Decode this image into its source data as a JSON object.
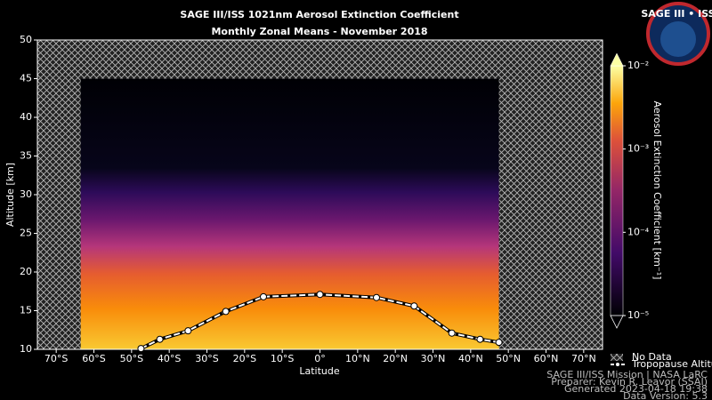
{
  "chart_data": {
    "type": "line",
    "title": "SAGE III/ISS 1021nm Aerosol Extinction Coefficient",
    "subtitle": "Monthly Zonal Means - November 2018",
    "x_label": "Latitude",
    "y_label": "Altitude [km]",
    "xlim": [
      -75,
      75
    ],
    "ylim": [
      10,
      50
    ],
    "xticks": [
      {
        "value": -70,
        "label": "70°S"
      },
      {
        "value": -60,
        "label": "60°S"
      },
      {
        "value": -50,
        "label": "50°S"
      },
      {
        "value": -40,
        "label": "40°S"
      },
      {
        "value": -30,
        "label": "30°S"
      },
      {
        "value": -20,
        "label": "20°S"
      },
      {
        "value": -10,
        "label": "10°S"
      },
      {
        "value": 0,
        "label": "0°"
      },
      {
        "value": 10,
        "label": "10°N"
      },
      {
        "value": 20,
        "label": "20°N"
      },
      {
        "value": 30,
        "label": "30°N"
      },
      {
        "value": 40,
        "label": "40°N"
      },
      {
        "value": 50,
        "label": "50°N"
      },
      {
        "value": 60,
        "label": "60°N"
      },
      {
        "value": 70,
        "label": "70°N"
      }
    ],
    "yticks": [
      10,
      15,
      20,
      25,
      30,
      35,
      40,
      45,
      50
    ],
    "coverage": {
      "lat": [
        -63.5,
        47.5
      ],
      "alt_top": 45
    },
    "series": [
      {
        "name": "Tropopause Altitude",
        "color": "#ffffff",
        "x": [
          -47.5,
          -42.5,
          -35,
          -25,
          -15,
          0,
          15,
          25,
          35,
          42.5,
          47.5
        ],
        "values": [
          10.1,
          11.3,
          12.4,
          14.9,
          16.8,
          17.1,
          16.7,
          15.6,
          12.1,
          11.3,
          10.9
        ]
      }
    ],
    "no_data_label": "No Data",
    "colorbar": {
      "label": "Aerosol Extinction Coefficient [km⁻¹]",
      "log_scale": true,
      "clim": [
        1e-05,
        0.01
      ],
      "cticks": [
        {
          "value": 1e-05,
          "label": "10⁻⁵"
        },
        {
          "value": 0.0001,
          "label": "10⁻⁴"
        },
        {
          "value": 0.001,
          "label": "10⁻³"
        },
        {
          "value": 0.01,
          "label": "10⁻²"
        }
      ]
    },
    "footer": [
      "SAGE III/ISS Mission | NASA LaRC",
      "Preparer: Kevin R. Leavor (SSAI)",
      "Generated 2023-04-18 19:38",
      "Data Version: 5.3"
    ],
    "logo_text": "SAGE III • ISS"
  }
}
